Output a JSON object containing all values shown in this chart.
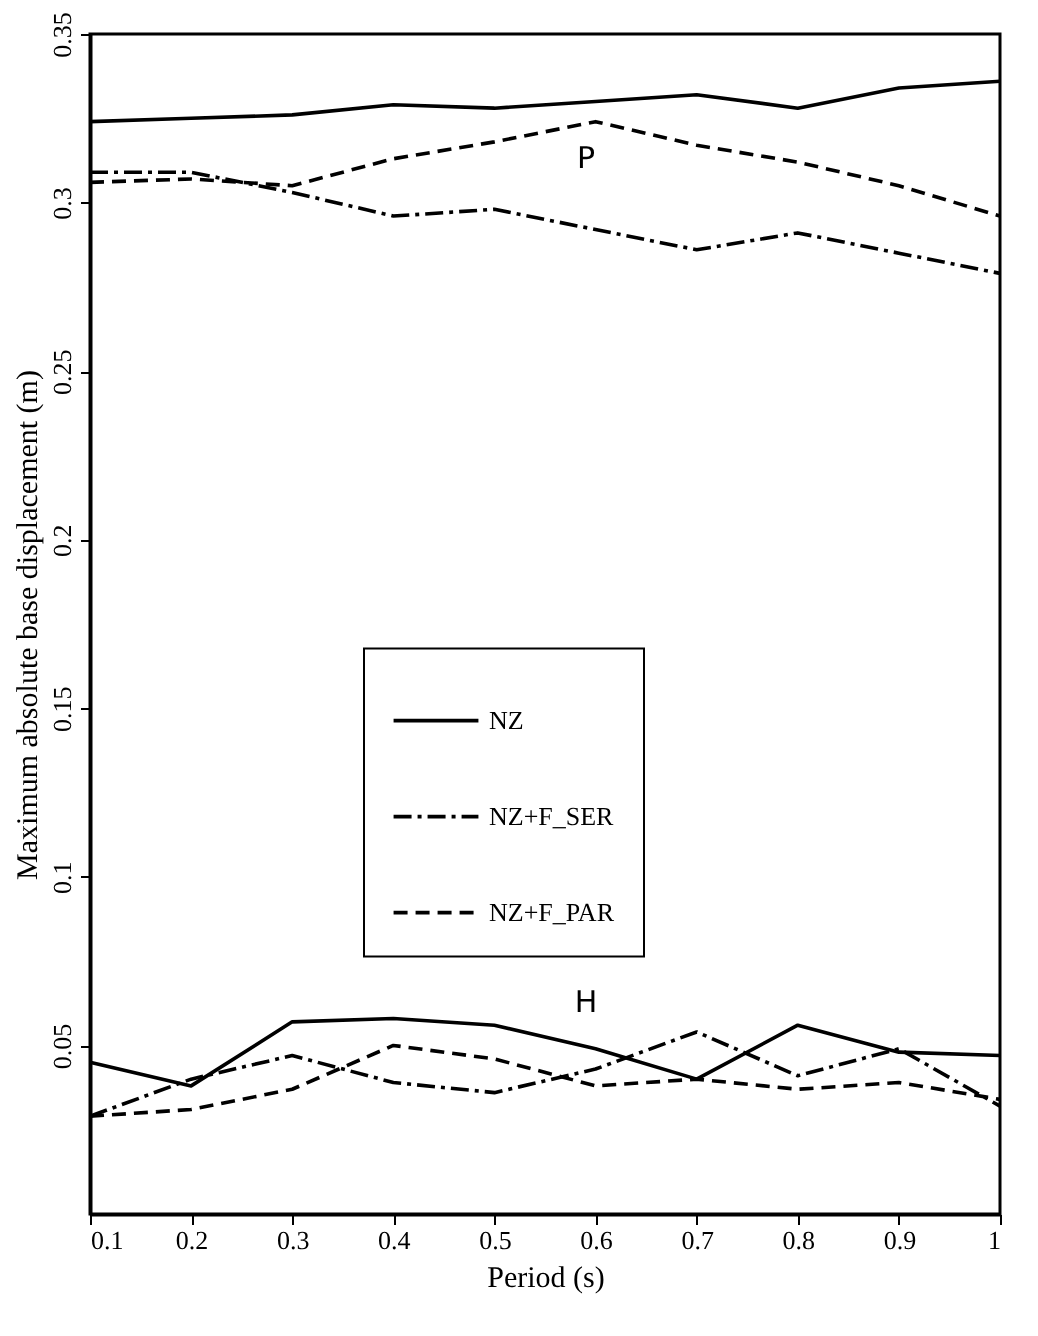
{
  "chart_data": {
    "type": "line",
    "xlabel": "Period (s)",
    "ylabel": "Maximum absolute base displacement (m)",
    "x": [
      0.1,
      0.2,
      0.3,
      0.4,
      0.5,
      0.6,
      0.7,
      0.8,
      0.9,
      1
    ],
    "series": [
      {
        "name": "NZ",
        "color": "#000000",
        "line_style": "solid",
        "values": [
          0.324,
          0.325,
          0.326,
          0.329,
          0.328,
          0.33,
          0.332,
          0.328,
          0.334,
          0.336
        ]
      },
      {
        "name": "NZ+F_SER",
        "color": "#000000",
        "line_style": "dashdot",
        "values": [
          0.309,
          0.309,
          0.303,
          0.296,
          0.298,
          0.292,
          0.286,
          0.291,
          0.285,
          0.279
        ]
      },
      {
        "name": "NZ+F_PAR",
        "color": "#000000",
        "line_style": "dashed",
        "values": [
          0.306,
          0.307,
          0.305,
          0.313,
          0.318,
          0.324,
          0.317,
          0.312,
          0.305,
          0.296
        ]
      },
      {
        "color": "#000000",
        "line_style": "solid",
        "values": [
          0.045,
          0.038,
          0.057,
          0.058,
          0.056,
          0.049,
          0.04,
          0.056,
          0.048,
          0.047
        ]
      },
      {
        "color": "#000000",
        "line_style": "dashdot",
        "values": [
          0.029,
          0.04,
          0.047,
          0.039,
          0.036,
          0.043,
          0.054,
          0.041,
          0.049,
          0.032
        ]
      },
      {
        "color": "#000000",
        "line_style": "dashed",
        "values": [
          0.029,
          0.031,
          0.037,
          0.05,
          0.046,
          0.038,
          0.04,
          0.037,
          0.039,
          0.034
        ]
      }
    ],
    "annotations": [
      "P",
      "H"
    ],
    "xlim": [
      0.1,
      1
    ],
    "xticks": [
      0.1,
      0.2,
      0.3,
      0.4,
      0.5,
      0.6,
      0.7,
      0.8,
      0.9,
      1
    ],
    "ylim": [
      0,
      0.35
    ],
    "yticks": [
      0.05,
      0.1,
      0.15,
      0.2,
      0.25,
      0.3,
      0.35
    ],
    "grid": false,
    "legend": "center",
    "marker": "none"
  }
}
